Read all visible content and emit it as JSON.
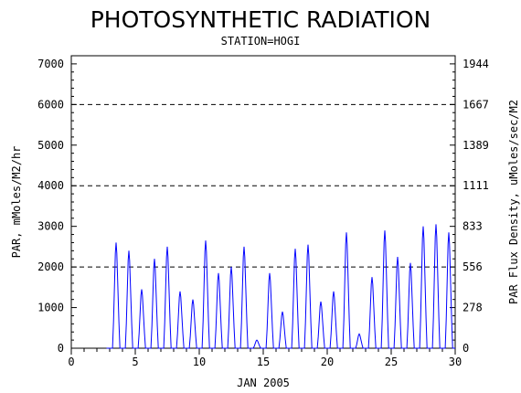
{
  "chart_data": {
    "type": "line",
    "title": "PHOTOSYNTHETIC RADIATION",
    "subtitle": "STATION=HOGI",
    "xlabel": "JAN 2005",
    "ylabel": "PAR, mMoles/M2/hr",
    "y2label": "PAR Flux Density, uMoles/sec/M2",
    "xlim": [
      0,
      30
    ],
    "ylim": [
      0,
      7200
    ],
    "x_ticks": [
      0,
      5,
      10,
      15,
      20,
      25,
      30
    ],
    "y_ticks": [
      0,
      1000,
      2000,
      3000,
      4000,
      5000,
      6000,
      7000
    ],
    "y2_ticks": [
      "0",
      "278",
      "556",
      "833",
      "1111",
      "1389",
      "1667",
      "1944"
    ],
    "gridlines_y": [
      2000,
      4000,
      6000
    ],
    "line_color": "#0000ff",
    "series": [
      {
        "daily_peaks": [
          {
            "day": 3,
            "peak": 2600
          },
          {
            "day": 4,
            "peak": 2400
          },
          {
            "day": 5,
            "peak": 1450
          },
          {
            "day": 6,
            "peak": 2200
          },
          {
            "day": 7,
            "peak": 2500
          },
          {
            "day": 8,
            "peak": 1400
          },
          {
            "day": 9,
            "peak": 1200
          },
          {
            "day": 10,
            "peak": 2650
          },
          {
            "day": 11,
            "peak": 1850
          },
          {
            "day": 12,
            "peak": 2000
          },
          {
            "day": 13,
            "peak": 2500
          },
          {
            "day": 14,
            "peak": 200
          },
          {
            "day": 15,
            "peak": 1850
          },
          {
            "day": 16,
            "peak": 900
          },
          {
            "day": 17,
            "peak": 2450
          },
          {
            "day": 18,
            "peak": 2550
          },
          {
            "day": 19,
            "peak": 1150
          },
          {
            "day": 20,
            "peak": 1400
          },
          {
            "day": 21,
            "peak": 2850
          },
          {
            "day": 22,
            "peak": 350
          },
          {
            "day": 23,
            "peak": 1750
          },
          {
            "day": 24,
            "peak": 2900
          },
          {
            "day": 25,
            "peak": 2250
          },
          {
            "day": 26,
            "peak": 2100
          },
          {
            "day": 27,
            "peak": 3000
          },
          {
            "day": 28,
            "peak": 3050
          },
          {
            "day": 29,
            "peak": 2850
          }
        ]
      }
    ]
  }
}
